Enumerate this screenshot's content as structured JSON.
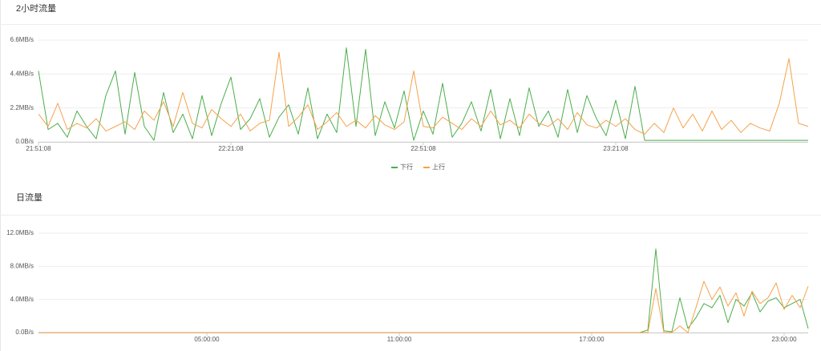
{
  "chart_data": [
    {
      "type": "line",
      "title": "2小时流量",
      "legend": "bottom",
      "grid": true,
      "xlim": [
        0,
        120
      ],
      "xticks": [
        {
          "value": 0,
          "label": "21:51:08"
        },
        {
          "value": 30,
          "label": "22:21:08"
        },
        {
          "value": 60,
          "label": "22:51:08"
        },
        {
          "value": 90,
          "label": "23:21:08"
        }
      ],
      "ylim": [
        0,
        6.6
      ],
      "yticks": [
        {
          "value": 0,
          "label": "0.0B/s"
        },
        {
          "value": 2.2,
          "label": "2.2MB/s"
        },
        {
          "value": 4.4,
          "label": "4.4MB/s"
        },
        {
          "value": 6.6,
          "label": "6.6MB/s"
        }
      ],
      "x": [
        0,
        1.5,
        3,
        4.5,
        6,
        7.5,
        9,
        10.5,
        12,
        13.5,
        15,
        16.5,
        18,
        19.5,
        21,
        22.5,
        24,
        25.5,
        27,
        28.5,
        30,
        31.5,
        33,
        34.5,
        36,
        37.5,
        39,
        40.5,
        42,
        43.5,
        45,
        46.5,
        48,
        49.5,
        51,
        52.5,
        54,
        55.5,
        57,
        58.5,
        60,
        61.5,
        63,
        64.5,
        66,
        67.5,
        69,
        70.5,
        72,
        73.5,
        75,
        76.5,
        78,
        79.5,
        81,
        82.5,
        84,
        85.5,
        87,
        88.5,
        90,
        91.5,
        93,
        94.5,
        96,
        97.5,
        99,
        100.5,
        102,
        103.5,
        105,
        106.5,
        108,
        109.5,
        111,
        112.5,
        114,
        115.5,
        117,
        118.5,
        120
      ],
      "series": [
        {
          "name": "下行",
          "color": "#4cae4c",
          "values": [
            4.6,
            0.8,
            1.2,
            0.3,
            2.0,
            1.0,
            0.2,
            3.0,
            4.6,
            0.5,
            4.5,
            1.0,
            0.1,
            3.2,
            0.6,
            1.8,
            0.2,
            3.0,
            0.4,
            2.5,
            4.2,
            0.8,
            1.5,
            2.8,
            0.3,
            1.6,
            2.4,
            0.5,
            3.5,
            0.2,
            1.8,
            0.6,
            6.1,
            1.0,
            6.0,
            0.4,
            2.6,
            0.9,
            3.3,
            0.1,
            2.0,
            0.5,
            3.8,
            0.3,
            1.2,
            2.6,
            0.7,
            3.4,
            0.2,
            2.8,
            0.4,
            3.5,
            1.0,
            2.0,
            0.3,
            3.4,
            0.6,
            3.0,
            1.5,
            0.4,
            2.7,
            0.2,
            3.6,
            0.1,
            0.1,
            0.1,
            0.1,
            0.1,
            0.1,
            0.1,
            0.1,
            0.1,
            0.1,
            0.1,
            0.1,
            0.1,
            0.1,
            0.1,
            0.1,
            0.1,
            0.1
          ]
        },
        {
          "name": "上行",
          "color": "#f5a24b",
          "values": [
            1.8,
            1.0,
            2.5,
            0.8,
            1.2,
            0.9,
            1.5,
            0.7,
            1.0,
            1.3,
            0.8,
            2.0,
            1.4,
            2.6,
            1.0,
            3.2,
            1.2,
            0.9,
            2.1,
            1.5,
            1.0,
            1.8,
            0.7,
            1.2,
            1.4,
            5.8,
            1.0,
            1.6,
            2.4,
            0.8,
            1.3,
            1.9,
            1.0,
            1.4,
            0.9,
            1.7,
            1.1,
            0.8,
            1.3,
            4.6,
            1.0,
            0.9,
            1.6,
            1.2,
            0.8,
            1.5,
            1.0,
            2.0,
            1.1,
            1.4,
            0.9,
            1.8,
            1.2,
            1.0,
            1.5,
            0.8,
            1.9,
            1.1,
            0.9,
            1.4,
            1.0,
            1.5,
            0.8,
            0.5,
            1.2,
            0.6,
            2.2,
            0.9,
            1.8,
            0.7,
            2.0,
            0.8,
            1.4,
            0.6,
            1.2,
            0.9,
            0.7,
            2.5,
            5.4,
            1.2,
            1.0
          ]
        }
      ]
    },
    {
      "type": "line",
      "title": "日流量",
      "grid": true,
      "xlim": [
        -0.25,
        23.75
      ],
      "xticks": [
        {
          "value": 5,
          "label": "05:00:00"
        },
        {
          "value": 11,
          "label": "11:00:00"
        },
        {
          "value": 17,
          "label": "17:00:00"
        },
        {
          "value": 23,
          "label": "23:00:00"
        }
      ],
      "ylim": [
        0,
        12
      ],
      "yticks": [
        {
          "value": 0,
          "label": "0.0B/s"
        },
        {
          "value": 4,
          "label": "4.0MB/s"
        },
        {
          "value": 8,
          "label": "8.0MB/s"
        },
        {
          "value": 12,
          "label": "12.0MB/s"
        }
      ],
      "x": [
        -0.25,
        18.5,
        18.75,
        19,
        19.25,
        19.5,
        19.75,
        20,
        20.25,
        20.5,
        20.75,
        21,
        21.25,
        21.5,
        21.75,
        22,
        22.25,
        22.5,
        22.75,
        23,
        23.25,
        23.5,
        23.75
      ],
      "series": [
        {
          "color": "#4cae4c",
          "values": [
            0,
            0,
            0.3,
            10.1,
            0.2,
            0.1,
            4.2,
            0.5,
            1.8,
            3.5,
            3.0,
            4.5,
            1.2,
            4.0,
            3.2,
            4.8,
            2.5,
            3.8,
            4.2,
            3.0,
            3.5,
            4.0,
            0.5
          ]
        },
        {
          "color": "#f5a24b",
          "values": [
            0,
            0,
            0,
            5.3,
            0,
            0,
            0.8,
            0,
            3.0,
            6.2,
            4.0,
            5.5,
            3.2,
            4.8,
            2.0,
            5.0,
            3.5,
            4.2,
            6.0,
            2.8,
            4.5,
            3.0,
            5.6
          ]
        }
      ]
    }
  ]
}
